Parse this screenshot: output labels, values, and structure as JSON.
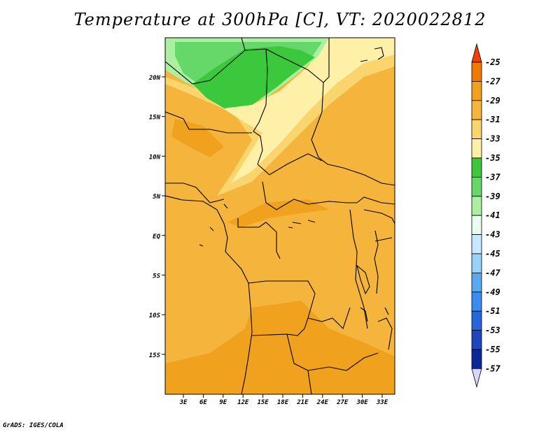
{
  "title": "Temperature at 300hPa [C], VT: 2020022812",
  "credit": "GrADS: IGES/COLA",
  "map": {
    "lat_labels": [
      "20N",
      "15N",
      "10N",
      "5N",
      "EQ",
      "5S",
      "10S",
      "15S"
    ],
    "lon_labels": [
      "3E",
      "6E",
      "9E",
      "12E",
      "15E",
      "18E",
      "21E",
      "24E",
      "27E",
      "30E",
      "33E"
    ],
    "fill_colors": {
      "base": "#f5b43c",
      "warm": "#f0a21e",
      "light_orange": "#fad56e",
      "pale_yellow": "#fff0a8",
      "light_green": "#aaf0a0",
      "mid_green": "#66d86a",
      "dark_green": "#3cc83c"
    }
  },
  "colorbar": {
    "labels": [
      "-25",
      "-27",
      "-29",
      "-31",
      "-33",
      "-35",
      "-37",
      "-39",
      "-41",
      "-43",
      "-45",
      "-47",
      "-49",
      "-51",
      "-53",
      "-55",
      "-57"
    ],
    "colors": [
      "#e63200",
      "#f07a00",
      "#f0a21e",
      "#f5b43c",
      "#fad56e",
      "#fff0a8",
      "#3cc83c",
      "#66d86a",
      "#aaf0a0",
      "#e8fff0",
      "#c8e8ff",
      "#96d2fa",
      "#5aa8f0",
      "#3c8cf0",
      "#2864dc",
      "#1e46be",
      "#0a2896",
      "#10105a"
    ],
    "top_color": "#fa3c00",
    "bottom_color": "#d7d7fa"
  }
}
